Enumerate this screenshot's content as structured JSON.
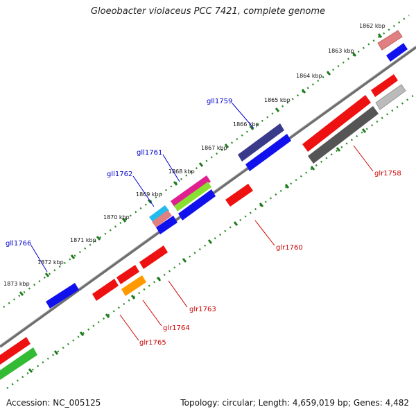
{
  "title": "Gloeobacter violaceus PCC 7421, complete genome",
  "footer": {
    "accession": "Accession: NC_005125",
    "summary": "Topology: circular; Length: 4,659,019 bp; Genes: 4,482"
  },
  "ticks": [
    "1862 kbp",
    "1863 kbp",
    "1864 kbp",
    "1865 kbp",
    "1866 kbp",
    "1867 kbp",
    "1868 kbp",
    "1869 kbp",
    "1870 kbp",
    "1871 kbp",
    "1872 kbp",
    "1873 kbp"
  ],
  "gene_labels": {
    "top": [
      "gll1759",
      "gll1761",
      "gll1762",
      "gll1766"
    ],
    "bottom": [
      "glr1758",
      "glr1760",
      "glr1763",
      "glr1764",
      "glr1765"
    ]
  },
  "colors": {
    "label_top": "#0000cc",
    "label_bottom": "#cc0000",
    "track": "#777777",
    "ruler": "#2a8a2a",
    "red": "#ee1111",
    "blue": "#1111ee",
    "navy": "#3a3a8a",
    "magenta": "#e02090",
    "lime": "#88e030",
    "cyan": "#22bbee",
    "pink": "#e08080",
    "gray": "#555555",
    "lightgray": "#bbbbbb",
    "orange": "#ff9900",
    "green": "#33bb33"
  }
}
